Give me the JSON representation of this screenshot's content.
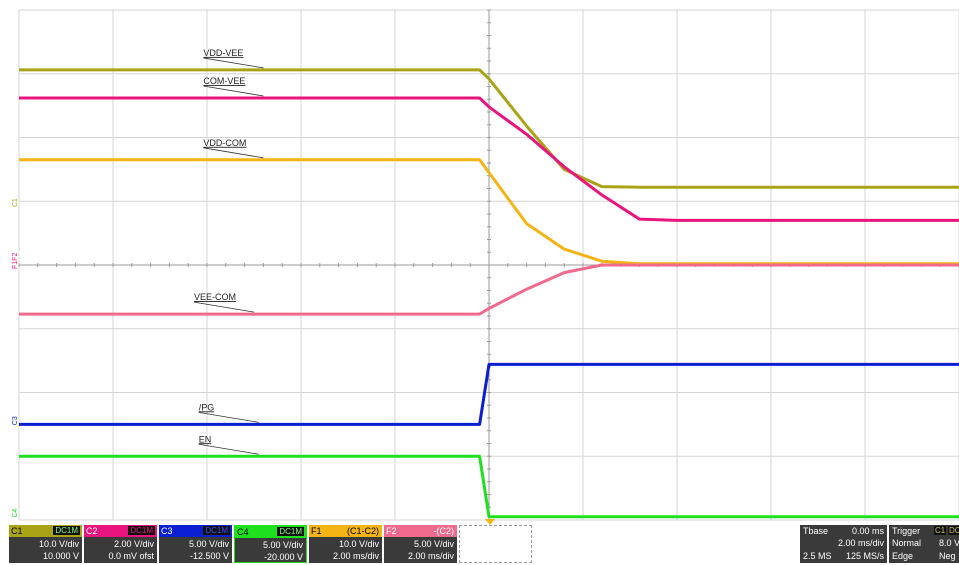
{
  "chart_data": {
    "type": "line",
    "title": "",
    "xlabel": "",
    "ylabel": "",
    "grid": true,
    "divisions": {
      "x": 10,
      "y": 8
    },
    "x_unit": "ms",
    "x": [
      -5.0,
      -0.1,
      0.0,
      0.4,
      0.8,
      1.2,
      1.6,
      2.0,
      5.0
    ],
    "series": [
      {
        "name": "VDD-VEE",
        "color": "#a9a316",
        "values": [
          3.06,
          3.06,
          2.92,
          2.18,
          1.5,
          1.23,
          1.22,
          1.22,
          1.22
        ]
      },
      {
        "name": "COM-VEE",
        "color": "#e8157e",
        "values": [
          2.62,
          2.62,
          2.48,
          2.05,
          1.54,
          1.1,
          0.72,
          0.7,
          0.7
        ]
      },
      {
        "name": "VDD-COM",
        "color": "#f5b416",
        "values": [
          1.65,
          1.65,
          1.45,
          0.65,
          0.25,
          0.06,
          0.02,
          0.02,
          0.02
        ]
      },
      {
        "name": "VEE-COM",
        "color": "#f06a8e",
        "values": [
          -0.77,
          -0.77,
          -0.68,
          -0.38,
          -0.12,
          0.0,
          0.0,
          0.0,
          0.0
        ]
      },
      {
        "name": "/PG",
        "color": "#0a1fd2",
        "values": [
          -2.5,
          -2.5,
          -1.56,
          -1.56,
          -1.56,
          -1.56,
          -1.56,
          -1.56,
          -1.56
        ]
      },
      {
        "name": "EN",
        "color": "#1fe01f",
        "values": [
          -3.0,
          -3.0,
          -3.95,
          -3.95,
          -3.95,
          -3.95,
          -3.95,
          -3.95,
          -3.95
        ]
      }
    ],
    "markers": [
      {
        "label": "C1",
        "color": "#a9a316",
        "y": 0.97
      },
      {
        "label": "F1F2",
        "color": "#e8157e",
        "y": 0.0
      },
      {
        "label": "C3",
        "color": "#0a1fd2",
        "y": -2.45
      },
      {
        "label": "C4",
        "color": "#1fe01f",
        "y": -3.9
      }
    ]
  },
  "channels": [
    {
      "name": "C1",
      "coupling": "DC1M",
      "line1": "10.0 V/div",
      "line2": "10.000 V",
      "color": "#a9a316"
    },
    {
      "name": "C2",
      "coupling": "DC1M",
      "line1": "2.00 V/div",
      "line2": "0.0 mV ofst",
      "color": "#e8157e"
    },
    {
      "name": "C3",
      "coupling": "DC1M",
      "line1": "5.00 V/div",
      "line2": "-12.500 V",
      "color": "#0a1fd2"
    },
    {
      "name": "C4",
      "coupling": "DC1M",
      "line1": "5.00 V/div",
      "line2": "-20.000 V",
      "color": "#1fe01f"
    },
    {
      "name": "F1",
      "expr": "(C1-C2)",
      "line1": "10.0 V/div",
      "line2": "2.00 ms/div",
      "color": "#f5b416"
    },
    {
      "name": "F2",
      "expr": "-(C2)",
      "line1": "5.00 V/div",
      "line2": "2.00 ms/div",
      "color": "#f06a8e"
    }
  ],
  "timebase": {
    "label": "Tbase",
    "offset": "0.00 ms",
    "rate": "2.00 ms/div",
    "samples": "2.5 MS",
    "srate": "125 MS/s"
  },
  "trigger": {
    "label": "Trigger",
    "mode": "Normal",
    "type": "Edge",
    "level": "8.0 V",
    "slope": "Neg",
    "src": "C1",
    "cpl": "DC"
  }
}
